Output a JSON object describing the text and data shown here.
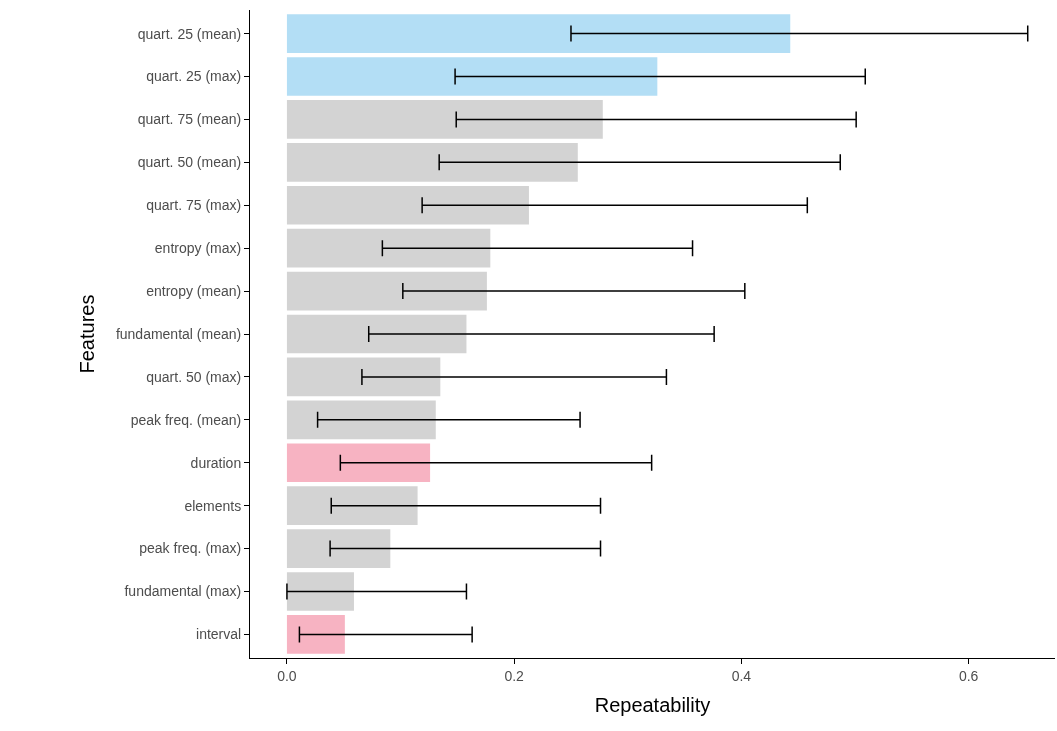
{
  "chart_data": {
    "type": "bar",
    "orientation": "horizontal",
    "xlabel": "Repeatability",
    "ylabel": "Features",
    "categories": [
      "quart. 25 (mean)",
      "quart. 25 (max)",
      "quart. 75 (mean)",
      "quart. 50 (mean)",
      "quart. 75 (max)",
      "entropy (max)",
      "entropy (mean)",
      "fundamental (mean)",
      "quart. 50 (max)",
      "peak freq. (mean)",
      "duration",
      "elements",
      "peak freq. (max)",
      "fundamental (max)",
      "interval"
    ],
    "values": [
      0.443,
      0.326,
      0.278,
      0.256,
      0.213,
      0.179,
      0.176,
      0.158,
      0.135,
      0.131,
      0.126,
      0.115,
      0.091,
      0.059,
      0.051
    ],
    "errors": [
      [
        0.25,
        0.652
      ],
      [
        0.148,
        0.509
      ],
      [
        0.149,
        0.501
      ],
      [
        0.134,
        0.487
      ],
      [
        0.119,
        0.458
      ],
      [
        0.084,
        0.357
      ],
      [
        0.102,
        0.403
      ],
      [
        0.072,
        0.376
      ],
      [
        0.066,
        0.334
      ],
      [
        0.027,
        0.258
      ],
      [
        0.047,
        0.321
      ],
      [
        0.039,
        0.276
      ],
      [
        0.038,
        0.276
      ],
      [
        0.0,
        0.158
      ],
      [
        0.011,
        0.163
      ]
    ],
    "colors": [
      "#b3def5",
      "#b3def5",
      "#d3d3d3",
      "#d3d3d3",
      "#d3d3d3",
      "#d3d3d3",
      "#d3d3d3",
      "#d3d3d3",
      "#d3d3d3",
      "#d3d3d3",
      "#f7b3c2",
      "#d3d3d3",
      "#d3d3d3",
      "#d3d3d3",
      "#f7b3c2"
    ],
    "xlim": [
      -0.0325,
      0.676
    ],
    "xticks": [
      {
        "value": 0,
        "label": "0.0"
      },
      {
        "value": 0.2,
        "label": "0.2"
      },
      {
        "value": 0.4,
        "label": "0.4"
      },
      {
        "value": 0.6,
        "label": "0.6"
      }
    ],
    "legend": false
  }
}
